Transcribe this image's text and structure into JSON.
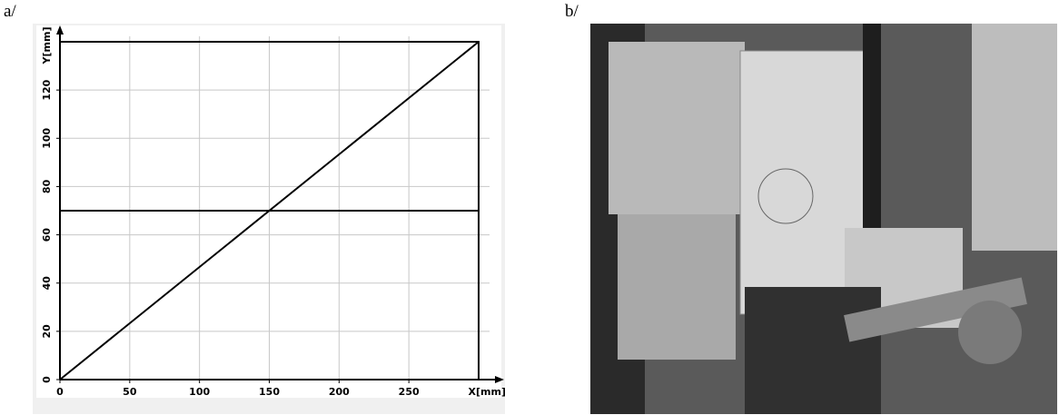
{
  "panel_labels": {
    "a": "a/",
    "b": "b/"
  },
  "chart_data": {
    "type": "line",
    "xlabel": "X[mm]",
    "ylabel": "Y[mm]",
    "series": [
      {
        "color": "#000000",
        "x": [
          0,
          300,
          300,
          0,
          0,
          300,
          300
        ],
        "values": [
          0,
          0,
          140,
          140,
          70,
          70,
          0
        ]
      },
      {
        "color": "#000000",
        "x": [
          0,
          300
        ],
        "values": [
          0,
          140
        ]
      }
    ],
    "xlim": [
      0,
      300
    ],
    "ylim": [
      0,
      140
    ],
    "xticks": [
      0,
      50,
      100,
      150,
      200,
      250
    ],
    "yticks": [
      0,
      20,
      40,
      60,
      80,
      100,
      120
    ],
    "grid": true
  }
}
